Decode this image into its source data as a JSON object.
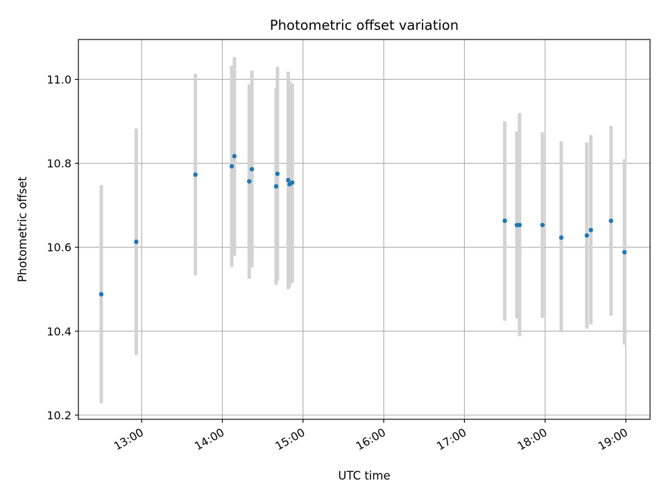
{
  "chart_data": {
    "type": "scatter",
    "title": "Photometric offset variation",
    "xlabel": "UTC time",
    "ylabel": "Photometric offset",
    "x_unit": "UTC time of day",
    "xlim": [
      "12:13",
      "19:18"
    ],
    "ylim": [
      10.19,
      11.095
    ],
    "grid": true,
    "x_ticks": [
      "13:00",
      "14:00",
      "15:00",
      "16:00",
      "17:00",
      "18:00",
      "19:00"
    ],
    "y_ticks": [
      "10.2",
      "10.4",
      "10.6",
      "10.8",
      "11.0"
    ],
    "colors": {
      "point": "#1f77b4",
      "errorbar": "#d3d3d3",
      "grid": "#b0b0b0",
      "axes": "#000000"
    },
    "points": [
      {
        "x": "12:30",
        "y": 10.488,
        "ylow": 10.228,
        "yhigh": 10.748
      },
      {
        "x": "12:56",
        "y": 10.613,
        "ylow": 10.343,
        "yhigh": 10.883
      },
      {
        "x": "13:40",
        "y": 10.773,
        "ylow": 10.533,
        "yhigh": 11.013
      },
      {
        "x": "14:07",
        "y": 10.793,
        "ylow": 10.553,
        "yhigh": 11.033
      },
      {
        "x": "14:09",
        "y": 10.817,
        "ylow": 10.58,
        "yhigh": 11.053
      },
      {
        "x": "14:20",
        "y": 10.757,
        "ylow": 10.525,
        "yhigh": 10.988
      },
      {
        "x": "14:22",
        "y": 10.786,
        "ylow": 10.552,
        "yhigh": 11.021
      },
      {
        "x": "14:40",
        "y": 10.745,
        "ylow": 10.51,
        "yhigh": 10.98
      },
      {
        "x": "14:41",
        "y": 10.775,
        "ylow": 10.52,
        "yhigh": 11.03
      },
      {
        "x": "14:49",
        "y": 10.76,
        "ylow": 10.5,
        "yhigh": 11.018
      },
      {
        "x": "14:50",
        "y": 10.75,
        "ylow": 10.505,
        "yhigh": 10.995
      },
      {
        "x": "14:52",
        "y": 10.754,
        "ylow": 10.515,
        "yhigh": 10.99
      },
      {
        "x": "17:30",
        "y": 10.663,
        "ylow": 10.425,
        "yhigh": 10.9
      },
      {
        "x": "17:39",
        "y": 10.653,
        "ylow": 10.43,
        "yhigh": 10.876
      },
      {
        "x": "17:41",
        "y": 10.653,
        "ylow": 10.388,
        "yhigh": 10.92
      },
      {
        "x": "17:58",
        "y": 10.653,
        "ylow": 10.432,
        "yhigh": 10.874
      },
      {
        "x": "18:12",
        "y": 10.623,
        "ylow": 10.397,
        "yhigh": 10.852
      },
      {
        "x": "18:31",
        "y": 10.628,
        "ylow": 10.406,
        "yhigh": 10.85
      },
      {
        "x": "18:34",
        "y": 10.641,
        "ylow": 10.416,
        "yhigh": 10.867
      },
      {
        "x": "18:49",
        "y": 10.663,
        "ylow": 10.437,
        "yhigh": 10.889
      },
      {
        "x": "18:59",
        "y": 10.588,
        "ylow": 10.368,
        "yhigh": 10.81
      }
    ]
  }
}
